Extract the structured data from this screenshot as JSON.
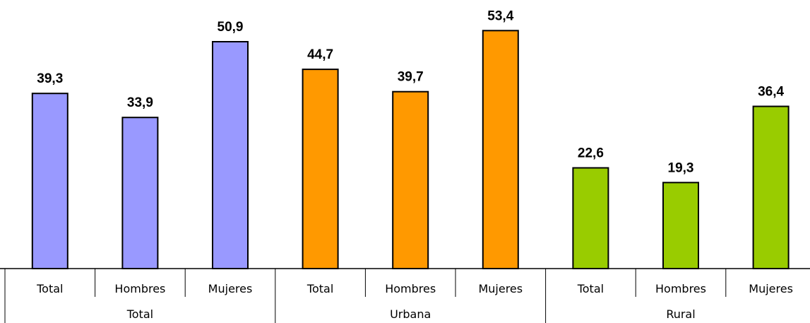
{
  "chart_data": {
    "type": "bar",
    "groups": [
      {
        "name": "Total",
        "color": "#9999ff",
        "categories": [
          "Total",
          "Hombres",
          "Mujeres"
        ],
        "values": [
          39.3,
          33.9,
          50.9
        ],
        "labels": [
          "39,3",
          "33,9",
          "50,9"
        ]
      },
      {
        "name": "Urbana",
        "color": "#ff9900",
        "categories": [
          "Total",
          "Hombres",
          "Mujeres"
        ],
        "values": [
          44.7,
          39.7,
          53.4
        ],
        "labels": [
          "44,7",
          "39,7",
          "53,4"
        ]
      },
      {
        "name": "Rural",
        "color": "#99cc00",
        "categories": [
          "Total",
          "Hombres",
          "Mujeres"
        ],
        "values": [
          22.6,
          19.3,
          36.4
        ],
        "labels": [
          "22,6",
          "19,3",
          "36,4"
        ]
      }
    ],
    "ylim": [
      0,
      60
    ],
    "grid": false,
    "legend": "none",
    "data_labels": true
  }
}
